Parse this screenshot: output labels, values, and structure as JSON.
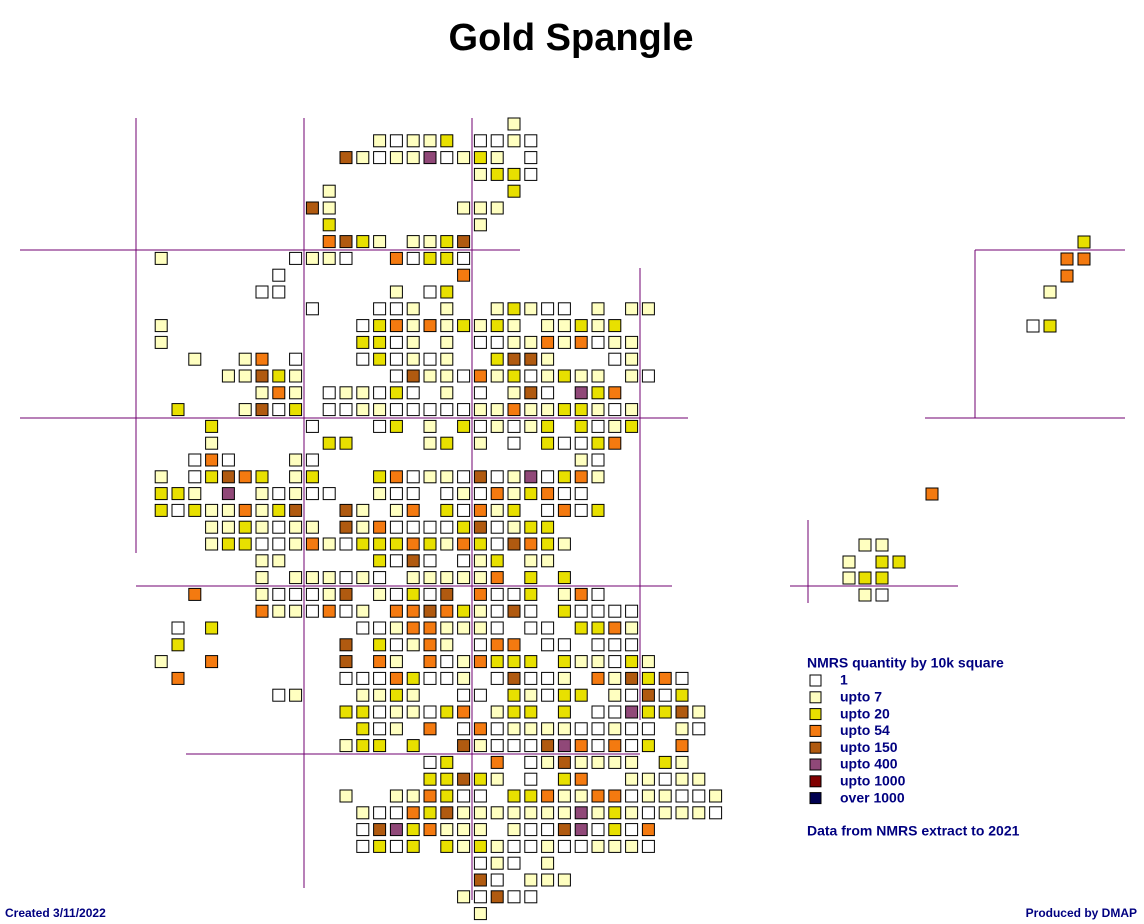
{
  "title": "Gold Spangle",
  "legend": {
    "title": "NMRS quantity by 10k square",
    "items": [
      {
        "label": "1",
        "color": "#ffffff"
      },
      {
        "label": "upto 7",
        "color": "#ffffc0"
      },
      {
        "label": "upto 20",
        "color": "#e8e000"
      },
      {
        "label": "upto 54",
        "color": "#f47a10"
      },
      {
        "label": "upto 150",
        "color": "#b05a10"
      },
      {
        "label": "upto 400",
        "color": "#904878"
      },
      {
        "label": "upto 1000",
        "color": "#800000"
      },
      {
        "label": "over 1000",
        "color": "#000050"
      }
    ]
  },
  "source_note": "Data from NMRS extract to 2021",
  "created": "Created 3/11/2022",
  "produced": "Produced by DMAP"
}
